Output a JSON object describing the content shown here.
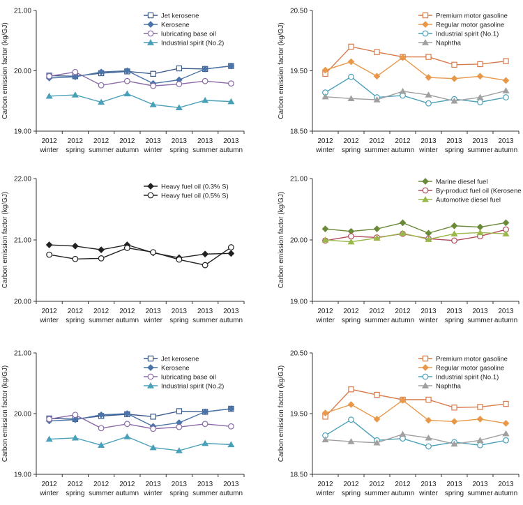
{
  "chart_data": [
    {
      "type": "line",
      "ylabel": "Carbon emission factor (kg/GJ)",
      "ylim": [
        19.0,
        21.0
      ],
      "yticks": [
        "19.00",
        "20.00",
        "21.00"
      ],
      "categories": [
        [
          "2012",
          "winter"
        ],
        [
          "2012",
          "spring"
        ],
        [
          "2012",
          "summer"
        ],
        [
          "2012",
          "autumn"
        ],
        [
          "2013",
          "winter"
        ],
        [
          "2013",
          "spring"
        ],
        [
          "2013",
          "summer"
        ],
        [
          "2013",
          "autumn"
        ]
      ],
      "legend_position": "top-right",
      "series": [
        {
          "name": "Jet kerosene",
          "color": "#3a5a8c",
          "marker": "square-open",
          "values": [
            19.92,
            19.91,
            19.96,
            19.99,
            19.95,
            20.04,
            20.03,
            20.08
          ]
        },
        {
          "name": "Kerosene",
          "color": "#4a74a8",
          "marker": "diamond",
          "values": [
            19.88,
            19.9,
            19.98,
            20.0,
            19.79,
            19.85,
            20.03,
            20.08
          ]
        },
        {
          "name": "lubricating base oil",
          "color": "#8a6aa8",
          "marker": "circle-open",
          "values": [
            19.91,
            19.98,
            19.76,
            19.83,
            19.75,
            19.78,
            19.83,
            19.79
          ]
        },
        {
          "name": "Industrial spirit (No.2)",
          "color": "#4aa0b8",
          "marker": "triangle",
          "values": [
            19.58,
            19.6,
            19.48,
            19.62,
            19.44,
            19.39,
            19.51,
            19.49
          ]
        }
      ]
    },
    {
      "type": "line",
      "ylabel": "Carbon emission factor (kg/GJ)",
      "ylim": [
        18.5,
        20.5
      ],
      "yticks": [
        "18.50",
        "19.50",
        "20.50"
      ],
      "categories": [
        [
          "2012",
          "winter"
        ],
        [
          "2012",
          "spring"
        ],
        [
          "2012",
          "summer"
        ],
        [
          "2012",
          "autumn"
        ],
        [
          "2013",
          "winter"
        ],
        [
          "2013",
          "spring"
        ],
        [
          "2013",
          "summer"
        ],
        [
          "2013",
          "autumn"
        ]
      ],
      "legend_position": "top-right",
      "series": [
        {
          "name": "Premium motor gasoline",
          "color": "#d97a4a",
          "marker": "square-open",
          "values": [
            19.45,
            19.9,
            19.81,
            19.73,
            19.73,
            19.6,
            19.61,
            19.66
          ]
        },
        {
          "name": "Regular motor gasoline",
          "color": "#e89848",
          "marker": "diamond",
          "values": [
            19.51,
            19.65,
            19.41,
            19.72,
            19.39,
            19.37,
            19.41,
            19.34
          ]
        },
        {
          "name": "Industrial spirit (No.1)",
          "color": "#4aa0b8",
          "marker": "circle-open",
          "values": [
            19.14,
            19.4,
            19.06,
            19.09,
            18.96,
            19.03,
            18.98,
            19.06
          ]
        },
        {
          "name": "Naphtha",
          "color": "#a0a0a0",
          "marker": "triangle",
          "values": [
            19.07,
            19.04,
            19.02,
            19.16,
            19.1,
            19.0,
            19.06,
            19.17
          ]
        }
      ]
    },
    {
      "type": "line",
      "ylabel": "Carbon emission factor (kg/GJ)",
      "ylim": [
        20.0,
        22.0
      ],
      "yticks": [
        "20.00",
        "21.00",
        "22.00"
      ],
      "categories": [
        [
          "2012",
          "winter"
        ],
        [
          "2012",
          "spring"
        ],
        [
          "2012",
          "summer"
        ],
        [
          "2012",
          "autumn"
        ],
        [
          "2013",
          "winter"
        ],
        [
          "2013",
          "spring"
        ],
        [
          "2013",
          "summer"
        ],
        [
          "2013",
          "autumn"
        ]
      ],
      "legend_position": "top-right",
      "series": [
        {
          "name": "Heavy fuel oil (0.3% S)",
          "color": "#222222",
          "marker": "diamond",
          "values": [
            20.92,
            20.9,
            20.84,
            20.92,
            20.79,
            20.71,
            20.77,
            20.78
          ]
        },
        {
          "name": "Heavy fuel oil (0.5% S)",
          "color": "#222222",
          "marker": "circle-open",
          "values": [
            20.76,
            20.69,
            20.7,
            20.87,
            20.8,
            20.68,
            20.59,
            20.88
          ]
        }
      ]
    },
    {
      "type": "line",
      "ylabel": "Carbon emission factor (kg/GJ)",
      "ylim": [
        19.0,
        21.0
      ],
      "yticks": [
        "19.00",
        "20.00",
        "21.00"
      ],
      "categories": [
        [
          "2012",
          "winter"
        ],
        [
          "2012",
          "spring"
        ],
        [
          "2012",
          "summer"
        ],
        [
          "2012",
          "autumn"
        ],
        [
          "2013",
          "winter"
        ],
        [
          "2013",
          "spring"
        ],
        [
          "2013",
          "summer"
        ],
        [
          "2013",
          "autumn"
        ]
      ],
      "legend_position": "top-right",
      "series": [
        {
          "name": "Marine diesel fuel",
          "color": "#6a8a3a",
          "marker": "diamond",
          "values": [
            20.18,
            20.14,
            20.18,
            20.28,
            20.11,
            20.23,
            20.21,
            20.28
          ]
        },
        {
          "name": "By-product fuel oil (Kerosene type)",
          "color": "#b04a5a",
          "marker": "circle-open",
          "values": [
            19.99,
            20.06,
            20.04,
            20.1,
            20.02,
            19.99,
            20.06,
            20.17
          ]
        },
        {
          "name": "Automotive diesel fuel",
          "color": "#9ab84a",
          "marker": "triangle",
          "values": [
            20.0,
            19.97,
            20.03,
            20.11,
            20.01,
            20.1,
            20.12,
            20.1
          ]
        }
      ]
    },
    {
      "type": "line",
      "ylabel": "Carbon emission factor (kg/GJ)",
      "ylim": [
        19.0,
        21.0
      ],
      "yticks": [
        "19.00",
        "20.00",
        "21.00"
      ],
      "categories": [
        [
          "2012",
          "winter"
        ],
        [
          "2012",
          "spring"
        ],
        [
          "2012",
          "summer"
        ],
        [
          "2012",
          "autumn"
        ],
        [
          "2013",
          "winter"
        ],
        [
          "2013",
          "spring"
        ],
        [
          "2013",
          "summer"
        ],
        [
          "2013",
          "autumn"
        ]
      ],
      "legend_position": "top-right",
      "series": [
        {
          "name": "Jet kerosene",
          "color": "#3a5a8c",
          "marker": "square-open",
          "values": [
            19.92,
            19.91,
            19.96,
            19.99,
            19.95,
            20.04,
            20.03,
            20.08
          ]
        },
        {
          "name": "Kerosene",
          "color": "#4a74a8",
          "marker": "diamond",
          "values": [
            19.88,
            19.9,
            19.98,
            20.0,
            19.79,
            19.85,
            20.03,
            20.08
          ]
        },
        {
          "name": "lubricating base oil",
          "color": "#8a6aa8",
          "marker": "circle-open",
          "values": [
            19.91,
            19.98,
            19.76,
            19.83,
            19.75,
            19.78,
            19.83,
            19.79
          ]
        },
        {
          "name": "Industrial spirit (No.2)",
          "color": "#4aa0b8",
          "marker": "triangle",
          "values": [
            19.58,
            19.6,
            19.48,
            19.62,
            19.44,
            19.39,
            19.51,
            19.49
          ]
        }
      ]
    },
    {
      "type": "line",
      "ylabel": "Carbon emission factor (kg/GJ)",
      "ylim": [
        18.5,
        20.5
      ],
      "yticks": [
        "18.50",
        "19.50",
        "20.50"
      ],
      "categories": [
        [
          "2012",
          "winter"
        ],
        [
          "2012",
          "spring"
        ],
        [
          "2012",
          "summer"
        ],
        [
          "2012",
          "autumn"
        ],
        [
          "2013",
          "winter"
        ],
        [
          "2013",
          "spring"
        ],
        [
          "2013",
          "summer"
        ],
        [
          "2013",
          "autumn"
        ]
      ],
      "legend_position": "top-right",
      "series": [
        {
          "name": "Premium motor gasoline",
          "color": "#d97a4a",
          "marker": "square-open",
          "values": [
            19.45,
            19.9,
            19.81,
            19.73,
            19.73,
            19.6,
            19.61,
            19.66
          ]
        },
        {
          "name": "Regular motor gasoline",
          "color": "#e89848",
          "marker": "diamond",
          "values": [
            19.51,
            19.65,
            19.41,
            19.72,
            19.39,
            19.37,
            19.41,
            19.34
          ]
        },
        {
          "name": "Industrial spirit (No.1)",
          "color": "#4aa0b8",
          "marker": "circle-open",
          "values": [
            19.14,
            19.4,
            19.06,
            19.09,
            18.96,
            19.03,
            18.98,
            19.06
          ]
        },
        {
          "name": "Naphtha",
          "color": "#a0a0a0",
          "marker": "triangle",
          "values": [
            19.07,
            19.04,
            19.02,
            19.16,
            19.1,
            19.0,
            19.06,
            19.17
          ]
        }
      ]
    }
  ]
}
